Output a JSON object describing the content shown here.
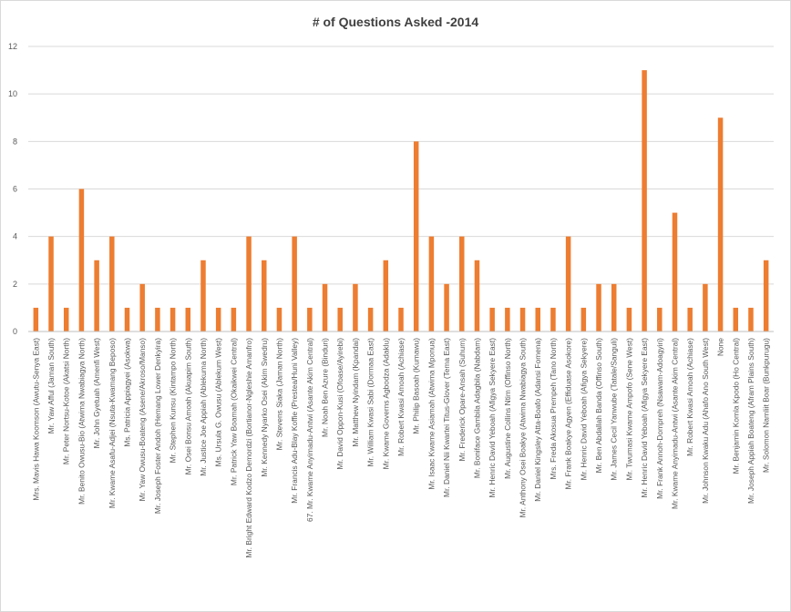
{
  "chart_data": {
    "type": "bar",
    "title": "# of Questions Asked -2014",
    "xlabel": "",
    "ylabel": "",
    "ylim": [
      0,
      12
    ],
    "yticks": [
      0,
      2,
      4,
      6,
      8,
      10,
      12
    ],
    "grid": true,
    "legend": "none",
    "colors": {
      "bar": "#ED7D31",
      "grid": "#D9D9D9",
      "axis": "#BFBFBF",
      "text": "#595959",
      "title": "#404040"
    },
    "categories": [
      "Mrs. Mavis Hawa Koomson (Awutu-Senya East)",
      "Mr. Yaw Afful (Jaman South)",
      "Mr. Peter Nortsu-Kotoe (Akatsi North)",
      "Mr. Benito Owusu-Bio (Atwima Nwabiagya North)",
      "Mr. John Gyetuah (Amenfi West)",
      "Mr. Kwame Asafu-Adjei (Nsuta-Kwamang Beposo)",
      "Ms. Patricia Appiagyei (Asokwa)",
      "Mr. Yaw Owusu-Boateng (Asene/Akroso/Manso)",
      "Mr. Joseph Foster Andoh (Hemang Lower Denkyira)",
      "Mr. Stephen Kunsu (Kintampo North)",
      "Mr. Osei Bonsu Amoah (Akuapim South)",
      "Mr. Justice Joe Appiah (Ablekuma North)",
      "Ms. Ursula G. Owusu (Ablekum West)",
      "Mr. Patrick Yaw Boamah (Okaikwei Central)",
      "Mr. Bright Edward Kodzo Demordzi (Bortianor-Ngleshie Amanfro)",
      "Mr. Kennedy Nyarko Osei (Akim Swedru)",
      "Mr. Stevens Siaka (Jaman North)",
      "Mr. Francis Adu-Blay Koffie (Prestea/Huni Valley)",
      "67. Mr. Kwame Anyimadu-Antwi (Asante Akim Central)",
      "Mr. Noah Ben Azure (Binduri)",
      "Mr. David Oppon-Kusi (Ofoase/Ayirebi)",
      "Mr. Matthew Nyindam (Kpandai)",
      "Mr. William Kwasi Sabi (Dormaa East)",
      "Mr. Kwame Governs Agbodza (Adaklu)",
      "Mr. Robert Kwasi Amoah (Achiase)",
      "Mr. Philip Basoah (Kumawu)",
      "Mr. Isaac Kwame Asiamah (Atwima Mponua)",
      "Mr. Daniel Nii Kwartei Titus-Glover (Tema East)",
      "Mr. Frederick Opare-Ansah (Suhum)",
      "Mr. Boniface Gambila Adagbila (Nabdam)",
      "Mr. Henric David Yeboah (Afigya Sekyere East)",
      "Mr. Augustine Collins Ntim (Offinso North)",
      "Mr. Anthony Osei Boakye (Atwima Nwabiagya South)",
      "Mr. Daniel Kingsley Atta-Boafo (Adansi Fomena)",
      "Mrs. Freda Akosua Prempeh (Tano North)",
      "Mr. Frank Boakye Agyen (Effiduase Asokore)",
      "Mr. Henric David Yeboah (Afigya Sekyere)",
      "Mr. Ben Abdallah Banda (Offinso South)",
      "Mr. James Cecil Yanwube (Tatale/Sanguli)",
      "Mr. Twumasi Kwame Ampofo (Sene West)",
      "Mr. Henric David Yeboah (Afigya Sekyere East)",
      "Mr. Frank Annoh-Dompreh (Nsawam-Adoagyiri)",
      "Mr. Kwame Anyimadu-Antwi (Asante Akim Central)",
      "Mr. Robert Kwasi Amoah (Achiase)",
      "Mr. Johnson Kwaku Adu (Ahafo Ano South West)",
      "None",
      "Mr. Benjamin Komla Kpodo (Ho Central)",
      "Mr. Joseph Appiah Boateng (Afram Plains South)",
      "Mr. Solomon Namliit Boar (Bunkpurugu)"
    ],
    "values": [
      1,
      4,
      1,
      6,
      3,
      4,
      1,
      2,
      1,
      1,
      1,
      3,
      1,
      1,
      4,
      3,
      1,
      4,
      1,
      2,
      1,
      2,
      1,
      3,
      1,
      8,
      4,
      2,
      4,
      3,
      1,
      1,
      1,
      1,
      1,
      4,
      1,
      2,
      2,
      1,
      11,
      1,
      5,
      1,
      2,
      9,
      1,
      1,
      3
    ]
  }
}
